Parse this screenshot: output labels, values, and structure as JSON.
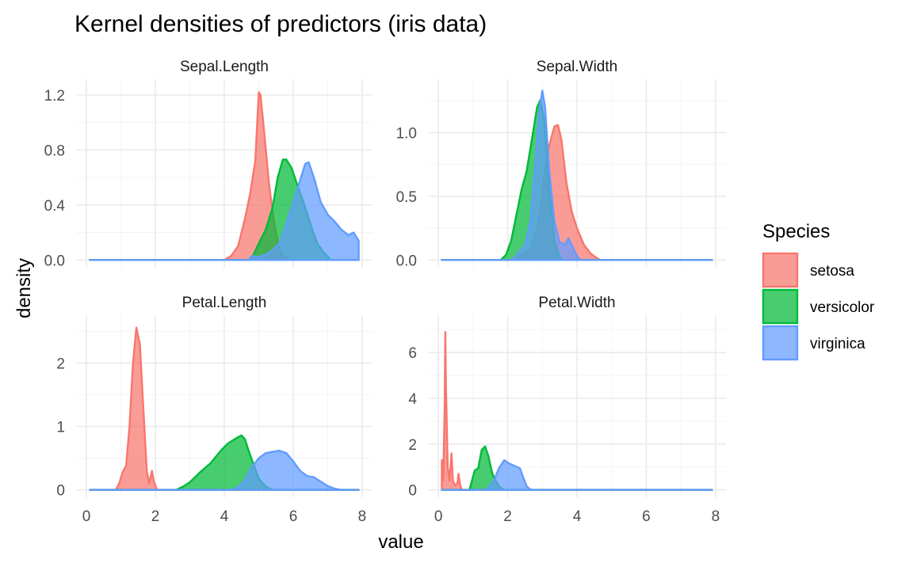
{
  "chart_data": {
    "type": "area",
    "title": "Kernel densities of predictors (iris data)",
    "xlabel": "value",
    "ylabel": "density",
    "legend": {
      "title": "Species",
      "placement": "right"
    },
    "grid": true,
    "series": [
      {
        "name": "setosa",
        "color": "#F8766D"
      },
      {
        "name": "versicolor",
        "color": "#00BA38"
      },
      {
        "name": "virginica",
        "color": "#619CFF"
      }
    ],
    "facets": [
      {
        "name": "Sepal.Length",
        "xlim": [
          0.1,
          7.9
        ],
        "ylim": [
          0,
          1.24
        ],
        "y_ticks": [
          0.0,
          0.4,
          0.8,
          1.2
        ],
        "y_tick_labels": [
          "0.0",
          "0.4",
          "0.8",
          "1.2"
        ],
        "curves": {
          "setosa": [
            [
              0.1,
              0
            ],
            [
              4.0,
              0
            ],
            [
              4.2,
              0.03
            ],
            [
              4.4,
              0.1
            ],
            [
              4.6,
              0.3
            ],
            [
              4.75,
              0.48
            ],
            [
              4.9,
              0.72
            ],
            [
              5.0,
              1.22
            ],
            [
              5.05,
              1.2
            ],
            [
              5.15,
              0.95
            ],
            [
              5.3,
              0.55
            ],
            [
              5.45,
              0.26
            ],
            [
              5.6,
              0.08
            ],
            [
              5.75,
              0.02
            ],
            [
              5.9,
              0
            ],
            [
              7.9,
              0
            ]
          ],
          "versicolor": [
            [
              0.1,
              0
            ],
            [
              4.7,
              0
            ],
            [
              4.85,
              0.04
            ],
            [
              5.0,
              0.12
            ],
            [
              5.2,
              0.22
            ],
            [
              5.4,
              0.38
            ],
            [
              5.55,
              0.6
            ],
            [
              5.7,
              0.73
            ],
            [
              5.8,
              0.73
            ],
            [
              5.95,
              0.67
            ],
            [
              6.1,
              0.56
            ],
            [
              6.3,
              0.42
            ],
            [
              6.5,
              0.26
            ],
            [
              6.7,
              0.12
            ],
            [
              6.9,
              0.05
            ],
            [
              7.1,
              0
            ],
            [
              7.9,
              0
            ]
          ],
          "virginica": [
            [
              0.1,
              0
            ],
            [
              4.7,
              0
            ],
            [
              4.8,
              0.03
            ],
            [
              5.0,
              0.02
            ],
            [
              5.3,
              0.05
            ],
            [
              5.6,
              0.12
            ],
            [
              5.8,
              0.26
            ],
            [
              6.0,
              0.42
            ],
            [
              6.2,
              0.58
            ],
            [
              6.35,
              0.7
            ],
            [
              6.45,
              0.71
            ],
            [
              6.6,
              0.6
            ],
            [
              6.8,
              0.42
            ],
            [
              7.0,
              0.33
            ],
            [
              7.2,
              0.28
            ],
            [
              7.4,
              0.22
            ],
            [
              7.6,
              0.18
            ],
            [
              7.75,
              0.2
            ],
            [
              7.9,
              0.14
            ]
          ]
        }
      },
      {
        "name": "Sepal.Width",
        "xlim": [
          0.1,
          7.9
        ],
        "ylim": [
          0,
          1.34
        ],
        "y_ticks": [
          0.0,
          0.5,
          1.0
        ],
        "y_tick_labels": [
          "0.0",
          "0.5",
          "1.0"
        ],
        "curves": {
          "setosa": [
            [
              0.1,
              0
            ],
            [
              2.2,
              0
            ],
            [
              2.3,
              0.03
            ],
            [
              2.5,
              0.05
            ],
            [
              2.7,
              0.1
            ],
            [
              2.9,
              0.3
            ],
            [
              3.05,
              0.65
            ],
            [
              3.2,
              0.9
            ],
            [
              3.35,
              1.05
            ],
            [
              3.45,
              1.06
            ],
            [
              3.55,
              0.95
            ],
            [
              3.7,
              0.6
            ],
            [
              3.85,
              0.38
            ],
            [
              4.0,
              0.25
            ],
            [
              4.2,
              0.12
            ],
            [
              4.4,
              0.05
            ],
            [
              4.6,
              0.01
            ],
            [
              4.7,
              0
            ],
            [
              7.9,
              0
            ]
          ],
          "versicolor": [
            [
              0.1,
              0
            ],
            [
              1.8,
              0
            ],
            [
              1.95,
              0.04
            ],
            [
              2.1,
              0.15
            ],
            [
              2.25,
              0.35
            ],
            [
              2.4,
              0.55
            ],
            [
              2.55,
              0.7
            ],
            [
              2.7,
              0.95
            ],
            [
              2.85,
              1.2
            ],
            [
              2.95,
              1.26
            ],
            [
              3.05,
              1.1
            ],
            [
              3.2,
              0.55
            ],
            [
              3.35,
              0.15
            ],
            [
              3.5,
              0.02
            ],
            [
              3.6,
              0
            ],
            [
              7.9,
              0
            ]
          ],
          "virginica": [
            [
              0.1,
              0
            ],
            [
              2.1,
              0
            ],
            [
              2.2,
              0.02
            ],
            [
              2.35,
              0.07
            ],
            [
              2.5,
              0.12
            ],
            [
              2.65,
              0.3
            ],
            [
              2.8,
              0.75
            ],
            [
              2.9,
              1.15
            ],
            [
              3.0,
              1.33
            ],
            [
              3.08,
              1.2
            ],
            [
              3.2,
              0.7
            ],
            [
              3.35,
              0.3
            ],
            [
              3.5,
              0.14
            ],
            [
              3.65,
              0.12
            ],
            [
              3.75,
              0.17
            ],
            [
              3.85,
              0.12
            ],
            [
              4.0,
              0.03
            ],
            [
              4.1,
              0
            ],
            [
              7.9,
              0
            ]
          ]
        }
      },
      {
        "name": "Petal.Length",
        "xlim": [
          0.1,
          7.9
        ],
        "ylim": [
          0,
          2.6
        ],
        "y_ticks": [
          0,
          1,
          2
        ],
        "y_tick_labels": [
          "0",
          "1",
          "2"
        ],
        "curves": {
          "setosa": [
            [
              0.1,
              0
            ],
            [
              0.85,
              0
            ],
            [
              0.95,
              0.1
            ],
            [
              1.05,
              0.28
            ],
            [
              1.15,
              0.38
            ],
            [
              1.25,
              1.0
            ],
            [
              1.35,
              2.0
            ],
            [
              1.45,
              2.56
            ],
            [
              1.55,
              2.3
            ],
            [
              1.65,
              1.3
            ],
            [
              1.75,
              0.3
            ],
            [
              1.82,
              0.1
            ],
            [
              1.9,
              0.3
            ],
            [
              1.96,
              0.12
            ],
            [
              2.05,
              0
            ],
            [
              7.9,
              0
            ]
          ],
          "versicolor": [
            [
              0.1,
              0
            ],
            [
              2.6,
              0
            ],
            [
              2.8,
              0.05
            ],
            [
              3.0,
              0.12
            ],
            [
              3.3,
              0.28
            ],
            [
              3.6,
              0.42
            ],
            [
              3.9,
              0.62
            ],
            [
              4.1,
              0.73
            ],
            [
              4.3,
              0.8
            ],
            [
              4.5,
              0.86
            ],
            [
              4.6,
              0.8
            ],
            [
              4.7,
              0.63
            ],
            [
              4.85,
              0.4
            ],
            [
              5.0,
              0.18
            ],
            [
              5.2,
              0.05
            ],
            [
              5.4,
              0
            ],
            [
              7.9,
              0
            ]
          ],
          "virginica": [
            [
              0.1,
              0
            ],
            [
              4.2,
              0
            ],
            [
              4.4,
              0.04
            ],
            [
              4.6,
              0.15
            ],
            [
              4.8,
              0.36
            ],
            [
              5.0,
              0.5
            ],
            [
              5.2,
              0.58
            ],
            [
              5.4,
              0.6
            ],
            [
              5.6,
              0.62
            ],
            [
              5.8,
              0.58
            ],
            [
              6.0,
              0.45
            ],
            [
              6.2,
              0.3
            ],
            [
              6.4,
              0.22
            ],
            [
              6.6,
              0.2
            ],
            [
              6.8,
              0.13
            ],
            [
              7.0,
              0.06
            ],
            [
              7.2,
              0.02
            ],
            [
              7.4,
              0
            ],
            [
              7.9,
              0
            ]
          ]
        }
      },
      {
        "name": "Petal.Width",
        "xlim": [
          0.1,
          7.9
        ],
        "ylim": [
          0,
          7.2
        ],
        "y_ticks": [
          0,
          2,
          4,
          6
        ],
        "y_tick_labels": [
          "0",
          "2",
          "4",
          "6"
        ],
        "curves": {
          "setosa": [
            [
              0.1,
              0
            ],
            [
              0.1,
              1.3
            ],
            [
              0.14,
              0.4
            ],
            [
              0.18,
              3.5
            ],
            [
              0.2,
              6.9
            ],
            [
              0.22,
              4.5
            ],
            [
              0.27,
              1.0
            ],
            [
              0.32,
              0.4
            ],
            [
              0.38,
              1.6
            ],
            [
              0.42,
              0.4
            ],
            [
              0.48,
              0.2
            ],
            [
              0.55,
              0.3
            ],
            [
              0.58,
              0.7
            ],
            [
              0.63,
              0.2
            ],
            [
              0.68,
              0
            ],
            [
              7.9,
              0
            ]
          ],
          "versicolor": [
            [
              0.1,
              0
            ],
            [
              0.9,
              0
            ],
            [
              0.95,
              0.3
            ],
            [
              1.05,
              0.85
            ],
            [
              1.15,
              0.95
            ],
            [
              1.25,
              1.75
            ],
            [
              1.35,
              1.9
            ],
            [
              1.45,
              1.45
            ],
            [
              1.55,
              0.75
            ],
            [
              1.65,
              0.4
            ],
            [
              1.75,
              0.15
            ],
            [
              1.85,
              0.04
            ],
            [
              1.9,
              0
            ],
            [
              7.9,
              0
            ]
          ],
          "virginica": [
            [
              0.1,
              0
            ],
            [
              1.35,
              0
            ],
            [
              1.45,
              0.1
            ],
            [
              1.6,
              0.4
            ],
            [
              1.75,
              0.95
            ],
            [
              1.9,
              1.3
            ],
            [
              2.05,
              1.15
            ],
            [
              2.2,
              1.05
            ],
            [
              2.35,
              0.95
            ],
            [
              2.45,
              0.55
            ],
            [
              2.55,
              0.15
            ],
            [
              2.65,
              0.03
            ],
            [
              2.7,
              0
            ],
            [
              7.9,
              0
            ]
          ]
        }
      }
    ],
    "x_ticks": [
      0,
      2,
      4,
      6,
      8
    ],
    "x_tick_labels": [
      "0",
      "2",
      "4",
      "6",
      "8"
    ]
  }
}
